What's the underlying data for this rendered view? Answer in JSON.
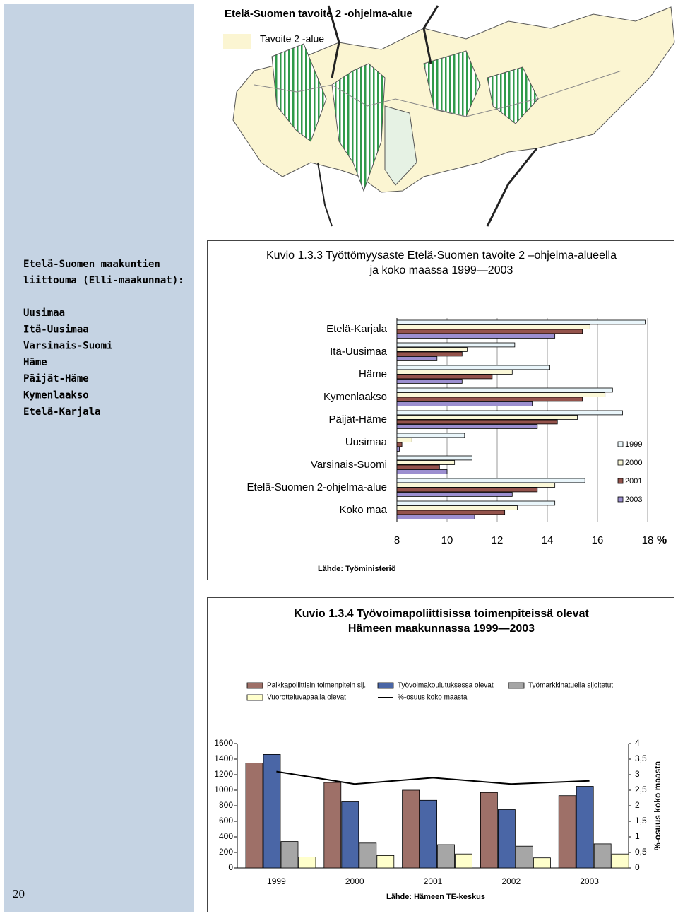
{
  "page_number": "20",
  "sidebar": {
    "heading": [
      "Etelä-Suomen maakuntien",
      "liittouma (Elli-maakunnat):"
    ],
    "regions": [
      "Uusimaa",
      "Itä-Uusimaa",
      "Varsinais-Suomi",
      "Häme",
      "Päijät-Häme",
      "Kymenlaakso",
      "Etelä-Karjala"
    ]
  },
  "map": {
    "title": "Etelä-Suomen tavoite 2 -ohjelma-alue",
    "legend": "Tavoite 2 -alue"
  },
  "chart_data": [
    {
      "type": "barh",
      "title": [
        "Kuvio 1.3.3 Työttömyysaste Etelä-Suomen tavoite 2 –ohjelma-alueella",
        "ja koko maassa 1999—2003"
      ],
      "categories": [
        "Etelä-Karjala",
        "Itä-Uusimaa",
        "Häme",
        "Kymenlaakso",
        "Päijät-Häme",
        "Uusimaa",
        "Varsinais-Suomi",
        "Etelä-Suomen 2-ohjelma-alue",
        "Koko maa"
      ],
      "series": [
        {
          "name": "1999",
          "color": "#eaf6fb",
          "values": [
            17.9,
            12.7,
            14.1,
            16.6,
            17.0,
            10.7,
            11.0,
            15.5,
            14.3
          ]
        },
        {
          "name": "2000",
          "color": "#fbf8d8",
          "values": [
            15.7,
            10.8,
            12.6,
            16.3,
            15.2,
            8.6,
            10.3,
            14.3,
            12.8
          ]
        },
        {
          "name": "2001",
          "color": "#94534c",
          "values": [
            15.4,
            10.6,
            11.8,
            15.4,
            14.4,
            8.2,
            9.7,
            13.6,
            12.3
          ]
        },
        {
          "name": "2003",
          "color": "#9c8fd0",
          "values": [
            14.3,
            9.6,
            10.6,
            13.4,
            13.6,
            8.1,
            10.0,
            12.6,
            11.1
          ]
        }
      ],
      "xlim": [
        8,
        18
      ],
      "xticks": [
        8,
        10,
        12,
        14,
        16,
        18
      ],
      "xlabel": "%",
      "grid": true,
      "legend": "right",
      "source": "Lähde: Työministeriö"
    },
    {
      "type": "bar",
      "title": [
        "Kuvio 1.3.4 Työvoimapoliittisissa toimenpiteissä olevat",
        "Hämeen maakunnassa 1999—2003"
      ],
      "categories": [
        "1999",
        "2000",
        "2001",
        "2002",
        "2003"
      ],
      "series": [
        {
          "name": "Palkkapoliittisin toimenpitein sij.",
          "color": "#9e7068",
          "values": [
            1350,
            1100,
            1000,
            970,
            930
          ]
        },
        {
          "name": "Työvoimakoulutuksessa olevat",
          "color": "#4a66a6",
          "values": [
            1460,
            850,
            870,
            750,
            1050
          ]
        },
        {
          "name": "Työmarkkinatuella sijoitetut",
          "color": "#a6a6a6",
          "values": [
            340,
            320,
            300,
            280,
            310
          ]
        },
        {
          "name": "Vuorotteluvapaalla olevat",
          "color": "#ffffcc",
          "values": [
            140,
            160,
            180,
            130,
            180
          ]
        },
        {
          "name": "%-osuus koko maasta",
          "color": "#000000",
          "type": "line",
          "axis": "y2",
          "values": [
            3.1,
            2.7,
            2.9,
            2.7,
            2.8
          ]
        }
      ],
      "ylim": [
        0,
        1600
      ],
      "yticks": [
        0,
        200,
        400,
        600,
        800,
        1000,
        1200,
        1400,
        1600
      ],
      "y2lim": [
        0,
        4
      ],
      "y2ticks": [
        0,
        {
          "value": 0.5,
          "label": "0,5"
        },
        1,
        {
          "value": 1.5,
          "label": "1,5"
        },
        2,
        {
          "value": 2.5,
          "label": "2,5"
        },
        3,
        {
          "value": 3.5,
          "label": "3,5"
        },
        4
      ],
      "y2label": "%-osuus koko maasta",
      "grid": false,
      "legend": "top",
      "source": "Lähde: Hämeen TE-keskus"
    }
  ]
}
